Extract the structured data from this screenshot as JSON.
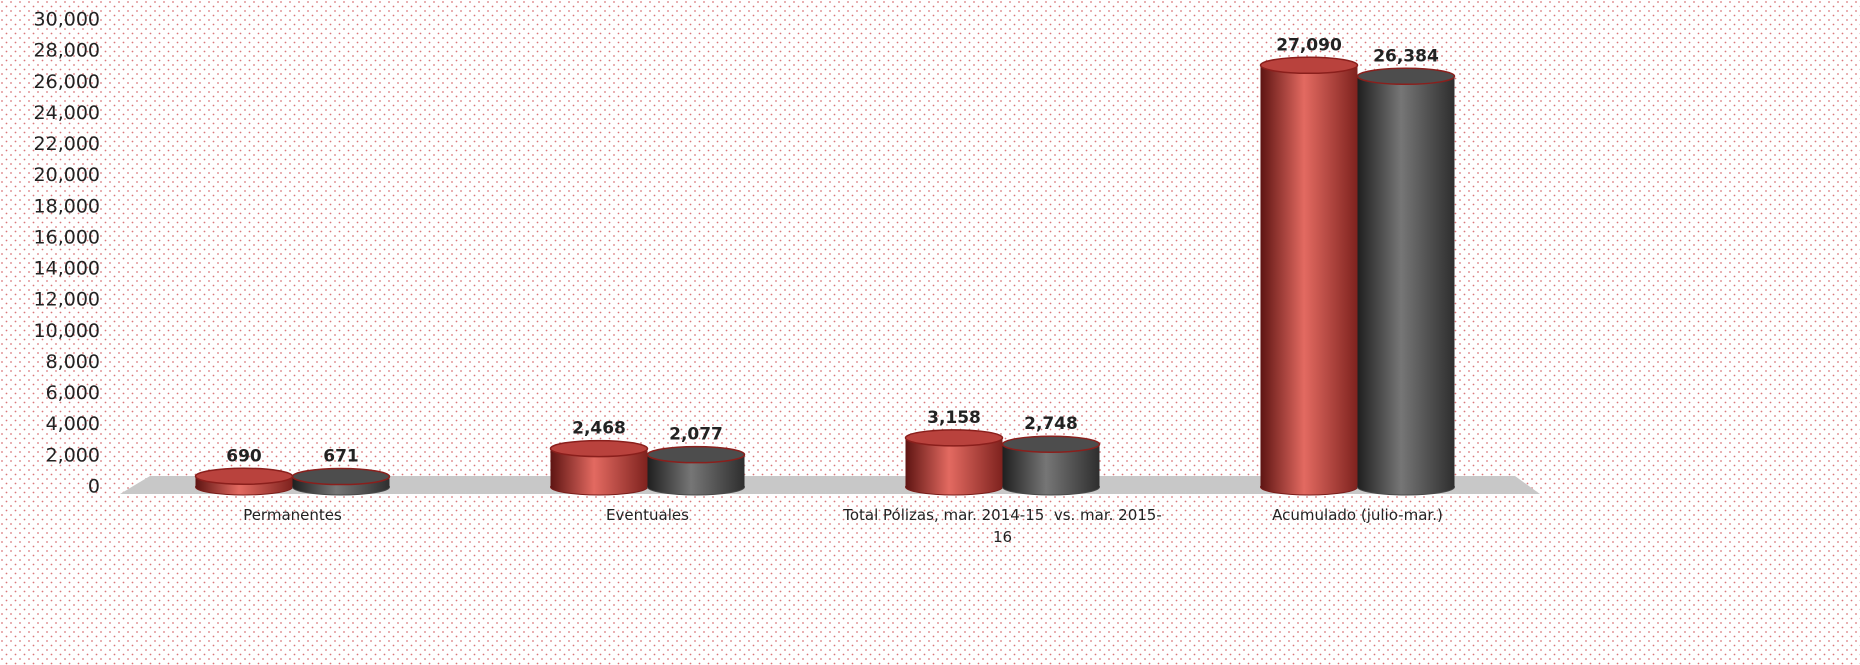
{
  "chart_data": {
    "type": "bar",
    "categories": [
      "Permanentes",
      "Eventuales",
      "Total Pólizas, mar. 2014-15  vs. mar. 2015-16",
      "Acumulado (julio-mar.)"
    ],
    "series": [
      {
        "color": "#c0504d",
        "values": [
          690,
          2468,
          3158,
          27090
        ],
        "value_labels": [
          "690",
          "2,468",
          "3,158",
          "27,090"
        ]
      },
      {
        "color": "#595959",
        "values": [
          671,
          2077,
          2748,
          26384
        ],
        "value_labels": [
          "671",
          "2,077",
          "2,748",
          "26,384"
        ]
      }
    ],
    "ylim": [
      0,
      30000
    ],
    "yticks": [
      0,
      {
        "value": 2000,
        "label": "2,000"
      },
      {
        "value": 4000,
        "label": "4,000"
      },
      {
        "value": 6000,
        "label": "6,000"
      },
      {
        "value": 8000,
        "label": "8,000"
      },
      {
        "value": 10000,
        "label": "10,000"
      },
      {
        "value": 12000,
        "label": "12,000"
      },
      {
        "value": 14000,
        "label": "14,000"
      },
      {
        "value": 16000,
        "label": "16,000"
      },
      {
        "value": 18000,
        "label": "18,000"
      },
      {
        "value": 20000,
        "label": "20,000"
      },
      {
        "value": 22000,
        "label": "22,000"
      },
      {
        "value": 24000,
        "label": "24,000"
      },
      {
        "value": 26000,
        "label": "26,000"
      },
      {
        "value": 28000,
        "label": "28,000"
      },
      {
        "value": 30000,
        "label": "30,000"
      }
    ]
  }
}
